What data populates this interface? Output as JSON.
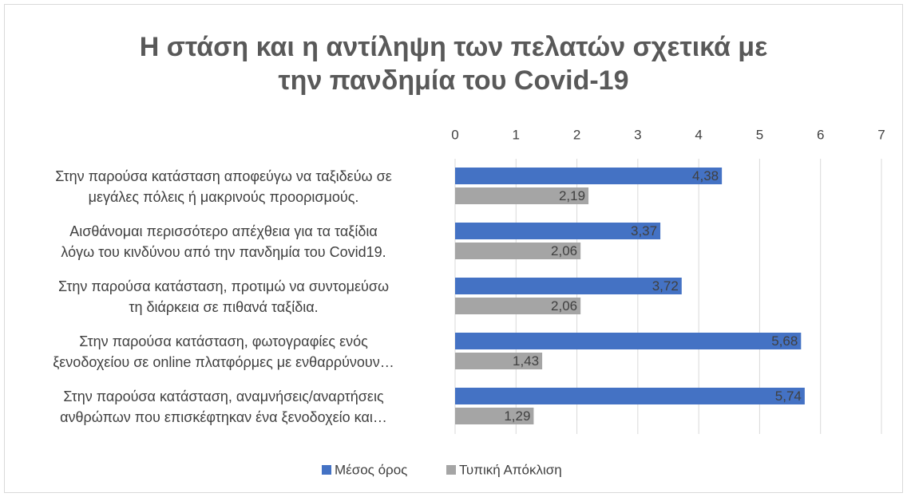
{
  "chart_data": {
    "type": "barh",
    "title": "Η στάση και η αντίληψη των πελατών σχετικά με\nτην πανδημία του Covid-19",
    "categories": [
      "Στην παρούσα κατάσταση αποφεύγω να ταξιδεύω σε\nμεγάλες πόλεις ή μακρινούς προορισμούς.",
      "Αισθάνομαι περισσότερο απέχθεια για τα ταξίδια\nλόγω του κινδύνου από την πανδημία του Covid19.",
      "Στην παρούσα κατάσταση, προτιμώ να συντομεύσω\nτη διάρκεια σε πιθανά ταξίδια.",
      "Στην παρούσα κατάσταση, φωτογραφίες ενός\nξενοδοχείου σε online πλατφόρμες με ενθαρρύνουν…",
      "Στην παρούσα κατάσταση, αναμνήσεις/αναρτήσεις\nανθρώπων που επισκέφτηκαν ένα ξενοδοχείο και…"
    ],
    "series": [
      {
        "name": "Μέσος όρος",
        "color": "#4472c4",
        "values": [
          4.38,
          3.37,
          3.72,
          5.68,
          5.74
        ],
        "value_labels": [
          "4,38",
          "3,37",
          "3,72",
          "5,68",
          "5,74"
        ]
      },
      {
        "name": "Τυπική Απόκλιση",
        "color": "#a5a5a5",
        "values": [
          2.19,
          2.06,
          2.06,
          1.43,
          1.29
        ],
        "value_labels": [
          "2,19",
          "2,06",
          "2,06",
          "1,43",
          "1,29"
        ]
      }
    ],
    "xlim": [
      0,
      7
    ],
    "xticks": [
      0,
      1,
      2,
      3,
      4,
      5,
      6,
      7
    ],
    "grid": true,
    "legend": "bottom"
  }
}
